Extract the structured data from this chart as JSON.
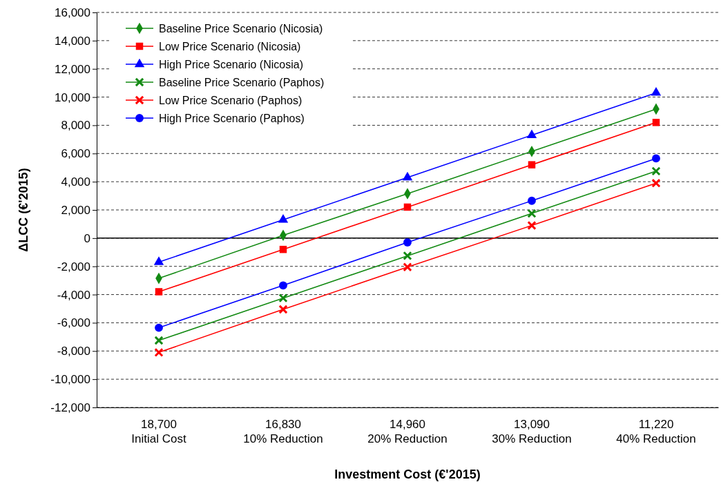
{
  "chart_data": {
    "type": "line",
    "xlabel": "Investment Cost (€'2015)",
    "ylabel": "ΔLCC (€'2015)",
    "categories": [
      "18,700\nInitial Cost",
      "16,830\n10% Reduction",
      "14,960\n20% Reduction",
      "13,090\n30% Reduction",
      "11,220\n40% Reduction"
    ],
    "ylim": [
      -12000,
      16000
    ],
    "yticks": [
      {
        "value": -12000,
        "label": "-12,000"
      },
      {
        "value": -10000,
        "label": "-10,000"
      },
      {
        "value": -8000,
        "label": "-8,000"
      },
      {
        "value": -6000,
        "label": "-6,000"
      },
      {
        "value": -4000,
        "label": "-4,000"
      },
      {
        "value": -2000,
        "label": "-2,000"
      },
      0,
      {
        "value": 2000,
        "label": "2,000"
      },
      {
        "value": 4000,
        "label": "4,000"
      },
      {
        "value": 6000,
        "label": "6,000"
      },
      {
        "value": 8000,
        "label": "8,000"
      },
      {
        "value": 10000,
        "label": "10,000"
      },
      {
        "value": 12000,
        "label": "12,000"
      },
      {
        "value": 14000,
        "label": "14,000"
      },
      {
        "value": 16000,
        "label": "16,000"
      }
    ],
    "grid": "y",
    "legend": "top left",
    "line_style": "solid",
    "ref_lines": [
      {
        "axis": "y",
        "value": 0,
        "color": "#000000"
      }
    ],
    "series": [
      {
        "name": "Baseline Price Scenario (Nicosia)",
        "color": "#138a13",
        "marker": "diamond",
        "values": [
          -2850,
          200,
          3150,
          6150,
          9150
        ]
      },
      {
        "name": "Low Price Scenario (Nicosia)",
        "color": "#ff0000",
        "marker": "square",
        "values": [
          -3800,
          -800,
          2200,
          5200,
          8200
        ]
      },
      {
        "name": "High Price Scenario (Nicosia)",
        "color": "#0000ff",
        "marker": "triangle",
        "values": [
          -1700,
          1300,
          4300,
          7300,
          10300
        ]
      },
      {
        "name": "Baseline Price Scenario (Paphos)",
        "color": "#138a13",
        "marker": "cross",
        "values": [
          -7250,
          -4250,
          -1250,
          1750,
          4750
        ]
      },
      {
        "name": "Low Price Scenario (Paphos)",
        "color": "#ff0000",
        "marker": "cross",
        "values": [
          -8100,
          -5050,
          -2050,
          900,
          3900
        ]
      },
      {
        "name": "High Price Scenario (Paphos)",
        "color": "#0000ff",
        "marker": "circle",
        "values": [
          -6350,
          -3350,
          -300,
          2650,
          5650
        ]
      }
    ]
  }
}
